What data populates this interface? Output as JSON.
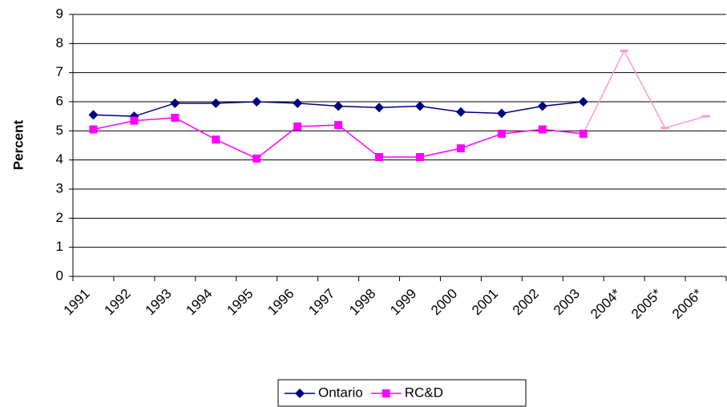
{
  "chart_data": {
    "type": "line",
    "y_label": "Percent",
    "categories": [
      "1991",
      "1992",
      "1993",
      "1994",
      "1995",
      "1996",
      "1997",
      "1998",
      "1999",
      "2000",
      "2001",
      "2002",
      "2003",
      "2004*",
      "2005*",
      "2006*"
    ],
    "series": [
      {
        "name": "Ontario",
        "color": "#000080",
        "marker": "diamond",
        "values": [
          5.55,
          5.5,
          5.95,
          5.95,
          6.0,
          5.95,
          5.85,
          5.8,
          5.85,
          5.65,
          5.6,
          5.85,
          6.0,
          null,
          null,
          null
        ]
      },
      {
        "name": "RC&D",
        "color": "#ff00ff",
        "projected_color": "#ff99cc",
        "marker": "square",
        "values": [
          5.05,
          5.35,
          5.45,
          4.7,
          4.05,
          5.15,
          5.2,
          4.1,
          4.1,
          4.4,
          4.9,
          5.05,
          4.9,
          7.75,
          5.1,
          5.5
        ]
      }
    ],
    "ylim": [
      0,
      9
    ],
    "yticks": [
      0,
      1,
      2,
      3,
      4,
      5,
      6,
      7,
      8,
      9
    ],
    "grid": true,
    "legend": "bottom"
  }
}
